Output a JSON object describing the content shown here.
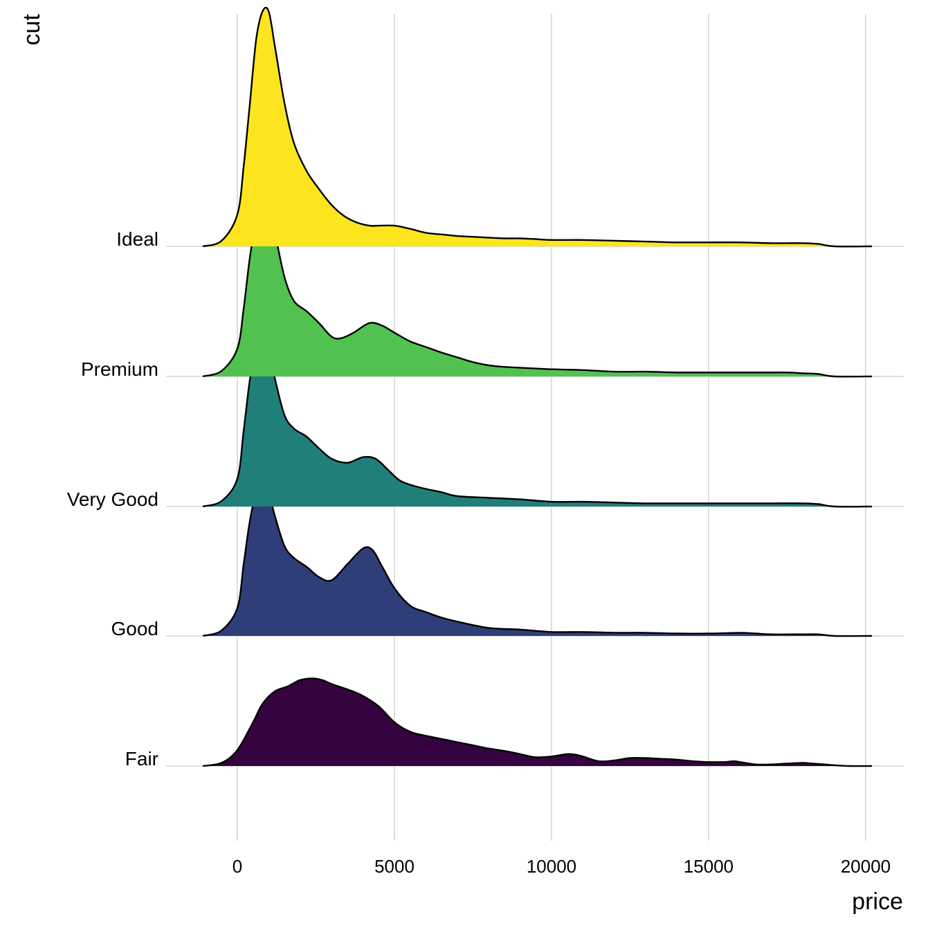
{
  "chart_data": {
    "type": "area",
    "subtype": "ridgeline density",
    "xlabel": "price",
    "ylabel": "cut",
    "xlim": [
      -1100,
      20200
    ],
    "x_ticks": [
      0,
      5000,
      10000,
      15000,
      20000
    ],
    "x_tick_labels": [
      "0",
      "5000",
      "10000",
      "15000",
      "20000"
    ],
    "grid": true,
    "legend": "none",
    "categories": [
      "Fair",
      "Good",
      "Very Good",
      "Premium",
      "Ideal"
    ],
    "colors": [
      "#35033f",
      "#2f3e78",
      "#217f79",
      "#51c250",
      "#fce51f"
    ],
    "series": [
      {
        "name": "Fair",
        "x": [
          -1100,
          -500,
          0,
          500,
          800,
          1200,
          1600,
          2000,
          2400,
          2700,
          3000,
          3300,
          3600,
          4000,
          4500,
          5000,
          5500,
          6000,
          6500,
          7000,
          7500,
          8000,
          8500,
          9000,
          9500,
          10000,
          10500,
          10800,
          11000,
          11500,
          12000,
          12500,
          13000,
          13500,
          14000,
          14500,
          15000,
          15500,
          15800,
          16000,
          16500,
          17000,
          17500,
          18000,
          18300,
          18700,
          19000,
          19500,
          20200
        ],
        "y": [
          0.0,
          0.04,
          0.2,
          0.55,
          0.78,
          0.94,
          1.0,
          1.08,
          1.1,
          1.08,
          1.03,
          0.99,
          0.95,
          0.88,
          0.75,
          0.55,
          0.43,
          0.38,
          0.34,
          0.3,
          0.26,
          0.22,
          0.19,
          0.15,
          0.11,
          0.12,
          0.15,
          0.14,
          0.12,
          0.06,
          0.07,
          0.1,
          0.1,
          0.09,
          0.08,
          0.06,
          0.05,
          0.05,
          0.06,
          0.05,
          0.02,
          0.02,
          0.03,
          0.04,
          0.03,
          0.02,
          0.01,
          0.0,
          0.0
        ]
      },
      {
        "name": "Good",
        "x": [
          -1100,
          -500,
          0,
          200,
          400,
          600,
          800,
          1000,
          1200,
          1500,
          1800,
          2200,
          2600,
          3000,
          3500,
          4000,
          4300,
          4600,
          5000,
          5500,
          6000,
          6500,
          7000,
          8000,
          9000,
          10000,
          11000,
          12000,
          13000,
          14000,
          15000,
          16000,
          16500,
          17000,
          18000,
          18500,
          19000,
          20200
        ],
        "y": [
          0.0,
          0.07,
          0.35,
          0.9,
          1.45,
          1.8,
          1.9,
          1.8,
          1.5,
          1.13,
          0.98,
          0.87,
          0.74,
          0.7,
          0.9,
          1.1,
          1.08,
          0.88,
          0.6,
          0.38,
          0.3,
          0.23,
          0.18,
          0.1,
          0.08,
          0.05,
          0.05,
          0.04,
          0.04,
          0.03,
          0.03,
          0.04,
          0.03,
          0.02,
          0.02,
          0.02,
          0.0,
          0.0
        ]
      },
      {
        "name": "Very Good",
        "x": [
          -1100,
          -500,
          0,
          200,
          400,
          600,
          800,
          1000,
          1200,
          1500,
          1800,
          2200,
          2600,
          3000,
          3500,
          4000,
          4400,
          4800,
          5200,
          5800,
          6500,
          7000,
          8000,
          9000,
          10000,
          11000,
          12000,
          13000,
          14000,
          15000,
          16000,
          17000,
          18000,
          18500,
          19000,
          20200
        ],
        "y": [
          0.0,
          0.07,
          0.35,
          0.95,
          1.6,
          2.05,
          2.2,
          2.0,
          1.6,
          1.15,
          0.98,
          0.88,
          0.73,
          0.6,
          0.55,
          0.62,
          0.6,
          0.46,
          0.32,
          0.24,
          0.18,
          0.13,
          0.11,
          0.09,
          0.06,
          0.06,
          0.05,
          0.04,
          0.04,
          0.04,
          0.04,
          0.04,
          0.04,
          0.03,
          0.0,
          0.0
        ]
      },
      {
        "name": "Premium",
        "x": [
          -1100,
          -500,
          0,
          200,
          400,
          600,
          800,
          1000,
          1200,
          1500,
          1800,
          2200,
          2600,
          3000,
          3300,
          3700,
          4200,
          4600,
          5000,
          5500,
          6000,
          6500,
          7000,
          7500,
          8000,
          8500,
          9000,
          10000,
          11000,
          12000,
          13000,
          14000,
          15000,
          16000,
          17000,
          17500,
          18000,
          18500,
          19000,
          20200
        ],
        "y": [
          0.0,
          0.07,
          0.35,
          0.85,
          1.5,
          1.95,
          2.2,
          2.2,
          1.8,
          1.25,
          0.95,
          0.82,
          0.67,
          0.5,
          0.48,
          0.55,
          0.67,
          0.64,
          0.55,
          0.44,
          0.37,
          0.3,
          0.24,
          0.18,
          0.14,
          0.12,
          0.11,
          0.09,
          0.08,
          0.06,
          0.06,
          0.05,
          0.05,
          0.05,
          0.05,
          0.05,
          0.04,
          0.03,
          0.0,
          0.0
        ]
      },
      {
        "name": "Ideal",
        "x": [
          -1100,
          -500,
          0,
          200,
          400,
          600,
          800,
          1000,
          1200,
          1500,
          1800,
          2200,
          2600,
          3000,
          3400,
          3800,
          4200,
          4500,
          5000,
          5500,
          6000,
          6500,
          7000,
          7500,
          8000,
          8500,
          9000,
          9500,
          10000,
          11000,
          12000,
          13000,
          14000,
          15000,
          16000,
          17000,
          18000,
          18500,
          19000,
          20200
        ],
        "y": [
          0.0,
          0.07,
          0.4,
          1.0,
          1.8,
          2.6,
          2.95,
          2.95,
          2.5,
          1.8,
          1.3,
          0.95,
          0.72,
          0.52,
          0.38,
          0.3,
          0.26,
          0.26,
          0.26,
          0.22,
          0.17,
          0.15,
          0.13,
          0.12,
          0.11,
          0.1,
          0.1,
          0.09,
          0.08,
          0.08,
          0.07,
          0.06,
          0.05,
          0.05,
          0.05,
          0.04,
          0.04,
          0.03,
          0.0,
          0.0
        ]
      }
    ]
  }
}
